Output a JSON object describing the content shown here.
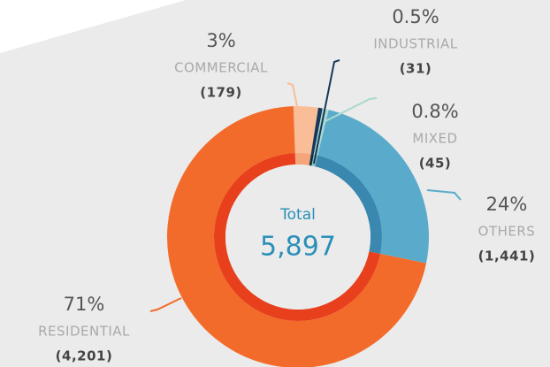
{
  "chart_data": {
    "type": "donut",
    "categories": [
      "COMMERCIAL",
      "INDUSTRIAL",
      "MIXED",
      "OTHERS",
      "RESIDENTIAL"
    ],
    "values": [
      179,
      31,
      45,
      1441,
      4201
    ],
    "value_labels": [
      "(179)",
      "(31)",
      "(45)",
      "(1,441)",
      "(4,201)"
    ],
    "percentages": [
      3,
      0.5,
      0.8,
      24,
      71
    ],
    "percentage_labels": [
      "3%",
      "0.5%",
      "0.8%",
      "24%",
      "71%"
    ],
    "colors": [
      "#f9bd97",
      "#17385a",
      "#a9d9d1",
      "#5aabcb",
      "#f26b2a"
    ],
    "inner_colors": [
      "#f5a57a",
      "#0f2a45",
      "#86c5bb",
      "#3a87b0",
      "#e8401c"
    ],
    "total_title": "Total",
    "total": {
      "value": 5897,
      "label": "5,897"
    }
  }
}
